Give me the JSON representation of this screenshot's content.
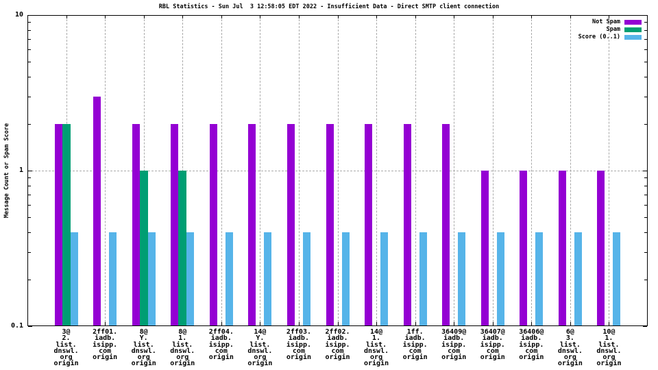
{
  "chart_data": {
    "type": "bar",
    "title": "RBL Statistics - Sun Jul  3 12:58:05 EDT 2022 - Insufficient Data - Direct SMTP client connection",
    "ylabel": "Message Count or Spam Score",
    "xlabel": "",
    "yscale": "log",
    "ylim": [
      0.1,
      10
    ],
    "ytick_labels": [
      "10",
      "1",
      "0.1"
    ],
    "ytick_values": [
      10,
      1,
      0.1
    ],
    "minor_tick_values": [
      0.2,
      0.3,
      0.4,
      0.5,
      0.6,
      0.7,
      0.8,
      0.9,
      2,
      3,
      4,
      5,
      6,
      7,
      8,
      9
    ],
    "grid": true,
    "gridline_at": 1,
    "legend_position": "top-right-inside",
    "colors": {
      "background": "#ffffff",
      "axis": "#000000",
      "grid": "#a9a9a9"
    },
    "categories": [
      "3@2.list.dnswl.org origin",
      "2ff01.iadb.isipp.com origin",
      "8@Y.list.dnswl.org origin",
      "8@1.list.dnswl.org origin",
      "2ff04.iadb.isipp.com origin",
      "14@Y.list.dnswl.org origin",
      "2ff03.iadb.isipp.com origin",
      "2ff02.iadb.isipp.com origin",
      "14@1.list.dnswl.org origin",
      "1ff.iadb.isipp.com origin",
      "36409@iadb.isipp.com origin",
      "36407@iadb.isipp.com origin",
      "36406@iadb.isipp.com origin",
      "6@3.list.dnswl.org origin",
      "10@1.list.dnswl.org origin"
    ],
    "category_lines": [
      [
        "3@",
        "2.",
        "list.",
        "dnswl.",
        "org",
        "origin"
      ],
      [
        "2ff01.",
        "iadb.",
        "isipp.",
        "com",
        "origin"
      ],
      [
        "8@",
        "Y.",
        "list.",
        "dnswl.",
        "org",
        "origin"
      ],
      [
        "8@",
        "1.",
        "list.",
        "dnswl.",
        "org",
        "origin"
      ],
      [
        "2ff04.",
        "iadb.",
        "isipp.",
        "com",
        "origin"
      ],
      [
        "14@",
        "Y.",
        "list.",
        "dnswl.",
        "org",
        "origin"
      ],
      [
        "2ff03.",
        "iadb.",
        "isipp.",
        "com",
        "origin"
      ],
      [
        "2ff02.",
        "iadb.",
        "isipp.",
        "com",
        "origin"
      ],
      [
        "14@",
        "1.",
        "list.",
        "dnswl.",
        "org",
        "origin"
      ],
      [
        "1ff.",
        "iadb.",
        "isipp.",
        "com",
        "origin"
      ],
      [
        "36409@",
        "iadb.",
        "isipp.",
        "com",
        "origin"
      ],
      [
        "36407@",
        "iadb.",
        "isipp.",
        "com",
        "origin"
      ],
      [
        "36406@",
        "iadb.",
        "isipp.",
        "com",
        "origin"
      ],
      [
        "6@",
        "3.",
        "list.",
        "dnswl.",
        "org",
        "origin"
      ],
      [
        "10@",
        "1.",
        "list.",
        "dnswl.",
        "org",
        "origin"
      ]
    ],
    "series": [
      {
        "name": "Not Spam",
        "color": "#9400d3",
        "values": [
          2,
          3,
          2,
          2,
          2,
          2,
          2,
          2,
          2,
          2,
          2,
          1,
          1,
          1,
          1
        ]
      },
      {
        "name": "Spam",
        "color": "#009e73",
        "values": [
          2,
          0,
          1,
          1,
          0,
          0,
          0,
          0,
          0,
          0,
          0,
          0,
          0,
          0,
          0
        ]
      },
      {
        "name": "Score (0..1)",
        "color": "#56b4e9",
        "values": [
          0.4,
          0.4,
          0.4,
          0.4,
          0.4,
          0.4,
          0.4,
          0.4,
          0.4,
          0.4,
          0.4,
          0.4,
          0.4,
          0.4,
          0.4
        ]
      }
    ]
  }
}
